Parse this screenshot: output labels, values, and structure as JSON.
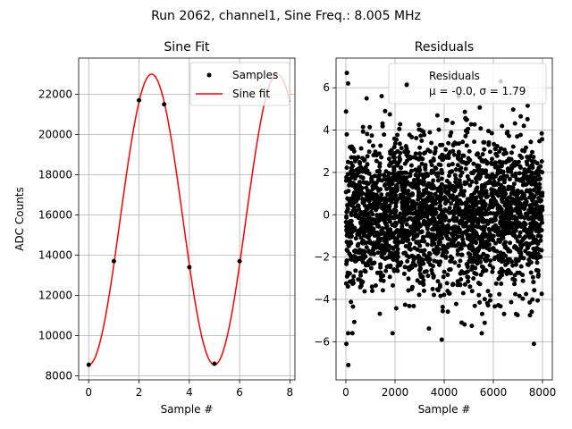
{
  "figure": {
    "title": "Run 2062, channel1, Sine Freq.: 8.005 MHz"
  },
  "chart_data": [
    {
      "type": "line",
      "title": "Sine Fit",
      "xlabel": "Sample #",
      "ylabel": "ADC Counts",
      "xlim": [
        -0.4,
        8.2
      ],
      "ylim": [
        7800,
        23800
      ],
      "xticks": [
        0,
        2,
        4,
        6,
        8
      ],
      "xtick_labels": [
        "0",
        "2",
        "4",
        "6",
        "8"
      ],
      "yticks": [
        8000,
        10000,
        12000,
        14000,
        16000,
        18000,
        20000,
        22000
      ],
      "ytick_labels": [
        "8000",
        "10000",
        "12000",
        "14000",
        "16000",
        "18000",
        "20000",
        "22000"
      ],
      "grid": true,
      "legend_placement": "upper-right",
      "series": [
        {
          "name": "Samples",
          "style": "markers",
          "color": "#000000",
          "x": [
            0,
            1,
            2,
            3,
            4,
            5,
            6
          ],
          "y": [
            8550,
            13700,
            21700,
            21500,
            13400,
            8600,
            13700
          ]
        },
        {
          "name": "Sine fit",
          "style": "line",
          "color": "#ff0000",
          "fit": {
            "offset": 15775,
            "amplitude": 7225,
            "period": 5.0,
            "peak_x": 2.5,
            "x_range": [
              0,
              8
            ]
          }
        }
      ]
    },
    {
      "type": "scatter",
      "title": "Residuals",
      "xlabel": "Sample #",
      "ylabel": "",
      "xlim": [
        -400,
        8400
      ],
      "ylim": [
        -7.8,
        7.4
      ],
      "xticks": [
        0,
        2000,
        4000,
        6000,
        8000
      ],
      "xtick_labels": [
        "0",
        "2000",
        "4000",
        "6000",
        "8000"
      ],
      "yticks": [
        -6,
        -4,
        -2,
        0,
        2,
        4,
        6
      ],
      "ytick_labels": [
        "−6",
        "−4",
        "−2",
        "0",
        "2",
        "4",
        "6"
      ],
      "grid": true,
      "legend_placement": "upper-right",
      "series": [
        {
          "name": "Residuals",
          "color": "#000000",
          "mean": -0.0,
          "sigma": 1.79,
          "n_points": 8000,
          "x_range": [
            0,
            7999
          ],
          "extremes": [
            [
              40,
              6.7
            ],
            [
              90,
              6.2
            ],
            [
              100,
              -7.1
            ],
            [
              20,
              -6.1
            ],
            [
              6300,
              6.3
            ],
            [
              7650,
              -6.1
            ],
            [
              3900,
              -5.9
            ],
            [
              2500,
              6.2
            ]
          ]
        }
      ],
      "legend_label": "Residuals",
      "legend_stats": "μ = -0.0, σ = 1.79"
    }
  ]
}
